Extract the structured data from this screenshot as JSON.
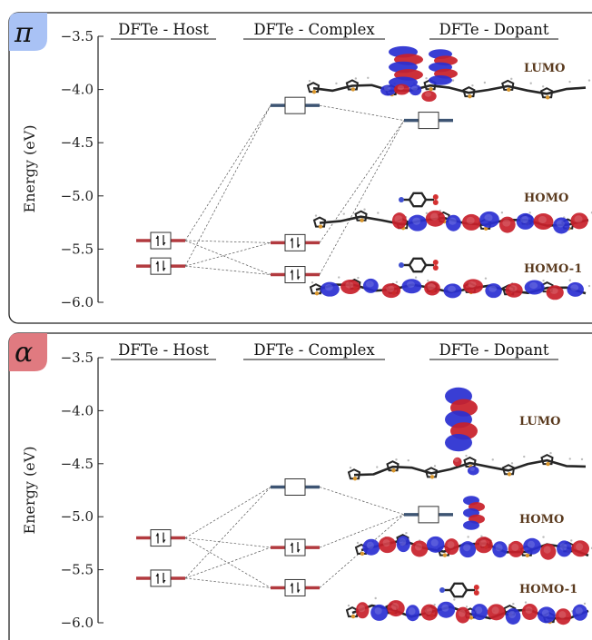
{
  "panels": [
    {
      "id": "pi",
      "symbol": "π",
      "badge_color": "#a9c2f5",
      "y_axis_label": "Energy (eV)",
      "y_ticks": [
        "−3.5",
        "−4.0",
        "−4.5",
        "−5.0",
        "−5.5",
        "−6.0"
      ],
      "columns": {
        "host": "DFTe - Host",
        "complex": "DFTe - Complex",
        "dopant": "DFTe - Dopant"
      },
      "orbital_labels": {
        "lumo": "LUMO",
        "homo": "HOMO",
        "homo1": "HOMO-1"
      },
      "levels": {
        "host_occupied": [
          -5.42,
          -5.66
        ],
        "complex_unoccupied": -4.15,
        "complex_occupied": [
          -5.44,
          -5.74
        ],
        "dopant_unoccupied": -4.29
      }
    },
    {
      "id": "alpha",
      "symbol": "α",
      "badge_color": "#e07a80",
      "y_axis_label": "Energy (eV)",
      "y_ticks": [
        "−3.5",
        "−4.0",
        "−4.5",
        "−5.0",
        "−5.5",
        "−6.0"
      ],
      "columns": {
        "host": "DFTe - Host",
        "complex": "DFTe - Complex",
        "dopant": "DFTe - Dopant"
      },
      "orbital_labels": {
        "lumo": "LUMO",
        "homo": "HOMO",
        "homo1": "HOMO-1"
      },
      "levels": {
        "host_occupied": [
          -5.2,
          -5.58
        ],
        "complex_unoccupied": -4.72,
        "complex_occupied": [
          -5.29,
          -5.67
        ],
        "dopant_unoccupied": -4.98
      }
    }
  ],
  "colors": {
    "occupied": "#b23a3f",
    "unoccupied": "#3d5473",
    "lobe_red": "#c8202a",
    "lobe_blue": "#2a2fd1",
    "carbon": "#262626",
    "sulfur": "#d9972e",
    "oxygen": "#d43030",
    "nitrogen": "#4050d0"
  }
}
